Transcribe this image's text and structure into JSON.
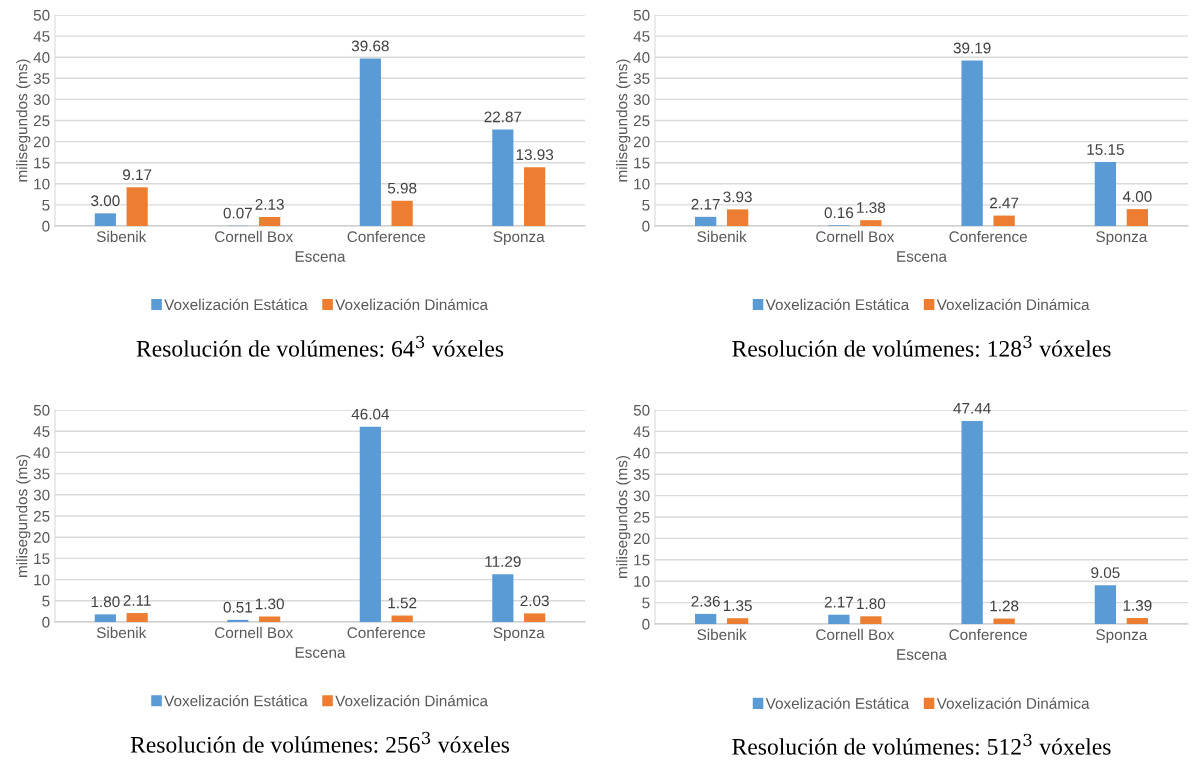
{
  "chart_data": [
    {
      "type": "bar",
      "title": "Resolución de volúmenes: 64$^{3}$ vóxeles",
      "xlabel": "Escena",
      "ylabel": "milisegundos (ms)",
      "categories": [
        "Sibenik",
        "Cornell Box",
        "Conference",
        "Sponza"
      ],
      "ylim": [
        0,
        50
      ],
      "yticks": [
        0,
        5,
        10,
        15,
        20,
        25,
        30,
        35,
        40,
        45,
        50
      ],
      "grid": "y",
      "legend": "bottom",
      "series": [
        {
          "name": "Voxelización Estática",
          "color": "#5b9bd5",
          "values": [
            3.0,
            0.07,
            39.68,
            22.87
          ],
          "value_labels": [
            "3.00",
            "0.07",
            "39.68",
            "22.87"
          ]
        },
        {
          "name": "Voxelización Dinámica",
          "color": "#ed7d31",
          "values": [
            9.17,
            2.13,
            5.98,
            13.93
          ],
          "value_labels": [
            "9.17",
            "2.13",
            "5.98",
            "13.93"
          ]
        }
      ]
    },
    {
      "type": "bar",
      "title": "Resolución de volúmenes: 128$^{3}$ vóxeles",
      "xlabel": "Escena",
      "ylabel": "milisegundos (ms)",
      "categories": [
        "Sibenik",
        "Cornell Box",
        "Conference",
        "Sponza"
      ],
      "ylim": [
        0,
        50
      ],
      "yticks": [
        0,
        5,
        10,
        15,
        20,
        25,
        30,
        35,
        40,
        45,
        50
      ],
      "grid": "y",
      "legend": "bottom",
      "series": [
        {
          "name": "Voxelización Estática",
          "color": "#5b9bd5",
          "values": [
            2.17,
            0.16,
            39.19,
            15.15
          ],
          "value_labels": [
            "2.17",
            "0.16",
            "39.19",
            "15.15"
          ]
        },
        {
          "name": "Voxelización Dinámica",
          "color": "#ed7d31",
          "values": [
            3.93,
            1.38,
            2.47,
            4.0
          ],
          "value_labels": [
            "3.93",
            "1.38",
            "2.47",
            "4.00"
          ]
        }
      ]
    },
    {
      "type": "bar",
      "title": "Resolución de volúmenes: 256$^{3}$ vóxeles",
      "xlabel": "Escena",
      "ylabel": "milisegundos (ms)",
      "categories": [
        "Sibenik",
        "Cornell Box",
        "Conference",
        "Sponza"
      ],
      "ylim": [
        0,
        50
      ],
      "yticks": [
        0,
        5,
        10,
        15,
        20,
        25,
        30,
        35,
        40,
        45,
        50
      ],
      "grid": "y",
      "legend": "bottom",
      "series": [
        {
          "name": "Voxelización Estática",
          "color": "#5b9bd5",
          "values": [
            1.8,
            0.51,
            46.04,
            11.29
          ],
          "value_labels": [
            "1.80",
            "0.51",
            "46.04",
            "11.29"
          ]
        },
        {
          "name": "Voxelización Dinámica",
          "color": "#ed7d31",
          "values": [
            2.11,
            1.3,
            1.52,
            2.03
          ],
          "value_labels": [
            "2.11",
            "1.30",
            "1.52",
            "2.03"
          ]
        }
      ]
    },
    {
      "type": "bar",
      "title": "Resolución de volúmenes: 512$^{3}$ vóxeles",
      "xlabel": "Escena",
      "ylabel": "milisegundos (ms)",
      "categories": [
        "Sibenik",
        "Cornell Box",
        "Conference",
        "Sponza"
      ],
      "ylim": [
        0,
        50
      ],
      "yticks": [
        0,
        5,
        10,
        15,
        20,
        25,
        30,
        35,
        40,
        45,
        50
      ],
      "grid": "y",
      "legend": "bottom",
      "series": [
        {
          "name": "Voxelización Estática",
          "color": "#5b9bd5",
          "values": [
            2.36,
            2.17,
            47.44,
            9.05
          ],
          "value_labels": [
            "2.36",
            "2.17",
            "47.44",
            "9.05"
          ]
        },
        {
          "name": "Voxelización Dinámica",
          "color": "#ed7d31",
          "values": [
            1.35,
            1.8,
            1.28,
            1.39
          ],
          "value_labels": [
            "1.35",
            "1.80",
            "1.28",
            "1.39"
          ]
        }
      ]
    }
  ]
}
